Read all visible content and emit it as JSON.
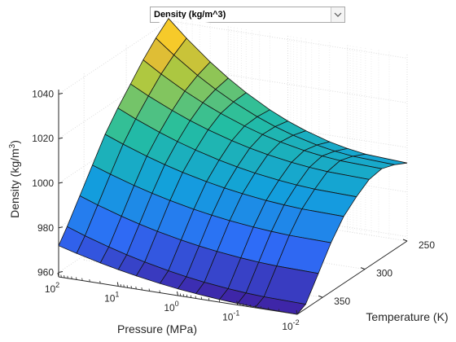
{
  "dropdown": {
    "selected": "Density (kg/m^3)",
    "icon": "chevron-down-icon"
  },
  "chart_data": {
    "type": "surface",
    "zlabel": "Density (kg/m",
    "zlabel_sup": "3",
    "zlabel_end": ")",
    "xlabel": "Pressure (MPa)",
    "ylabel": "Temperature (K)",
    "z_ticks": [
      "960",
      "980",
      "1000",
      "1020",
      "1040"
    ],
    "x_ticks": [
      {
        "base": "10",
        "exp": "2"
      },
      {
        "base": "10",
        "exp": "1"
      },
      {
        "base": "10",
        "exp": "0"
      },
      {
        "base": "10",
        "exp": "-1"
      },
      {
        "base": "10",
        "exp": "-2"
      }
    ],
    "y_ticks": [
      "250",
      "300",
      "350"
    ],
    "x_scale": "log",
    "x_range_mpa": [
      0.01,
      100
    ],
    "y_range_k": [
      250,
      380
    ],
    "z_range": [
      958,
      1042
    ],
    "grid": true,
    "colormap": "parula",
    "pressure_mpa": [
      100,
      50,
      20,
      10,
      5,
      2,
      1,
      0.5,
      0.2,
      0.1,
      0.05,
      0.01
    ],
    "temperature_k": [
      250,
      265,
      280,
      295,
      310,
      325,
      340,
      355,
      370,
      380
    ],
    "density_at_0_01_mpa": [
      993,
      996,
      998,
      997,
      993,
      988,
      980,
      970,
      960,
      958
    ],
    "density_at_100_mpa": [
      1041,
      1036,
      1030,
      1023,
      1016,
      1008,
      998,
      988,
      978,
      972
    ]
  }
}
